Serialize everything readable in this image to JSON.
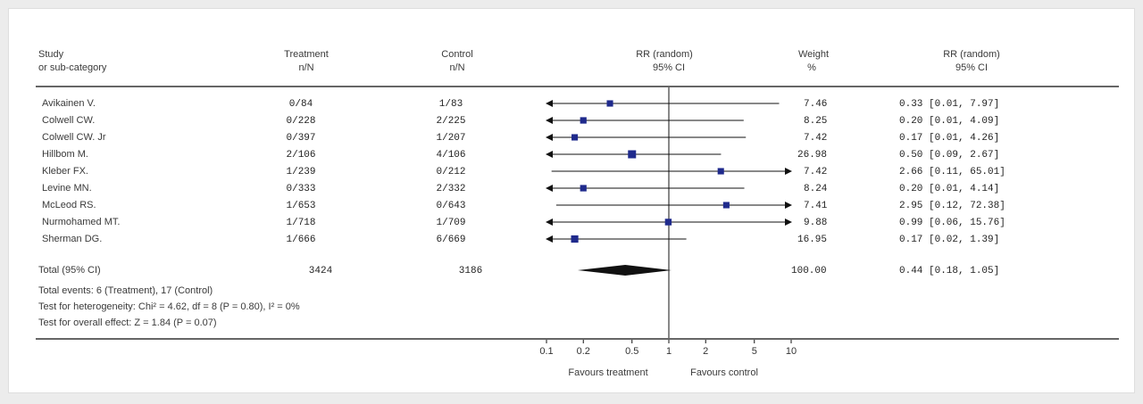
{
  "header": {
    "study": "Study",
    "study2": "or sub-category",
    "treatment": "Treatment",
    "treatment2": "n/N",
    "control": "Control",
    "control2": "n/N",
    "rr": "RR (random)",
    "rr2": "95% CI",
    "weight": "Weight",
    "weight2": "%",
    "rr_col": "RR (random)",
    "rr_col2": "95% CI"
  },
  "rows": [
    {
      "study": "Avikainen V.",
      "treatment": "0/84",
      "control": "1/83",
      "weight": "7.46",
      "ci_text": "0.33 [0.01, 7.97]"
    },
    {
      "study": "Colwell CW.",
      "treatment": "0/228",
      "control": "2/225",
      "weight": "8.25",
      "ci_text": "0.20 [0.01, 4.09]"
    },
    {
      "study": "Colwell CW. Jr",
      "treatment": "0/397",
      "control": "1/207",
      "weight": "7.42",
      "ci_text": "0.17 [0.01, 4.26]"
    },
    {
      "study": "Hillbom M.",
      "treatment": "2/106",
      "control": "4/106",
      "weight": "26.98",
      "ci_text": "0.50 [0.09, 2.67]"
    },
    {
      "study": "Kleber FX.",
      "treatment": "1/239",
      "control": "0/212",
      "weight": "7.42",
      "ci_text": "2.66 [0.11, 65.01]"
    },
    {
      "study": "Levine MN.",
      "treatment": "0/333",
      "control": "2/332",
      "weight": "8.24",
      "ci_text": "0.20 [0.01, 4.14]"
    },
    {
      "study": "McLeod RS.",
      "treatment": "1/653",
      "control": "0/643",
      "weight": "7.41",
      "ci_text": "2.95 [0.12, 72.38]"
    },
    {
      "study": "Nurmohamed MT.",
      "treatment": "1/718",
      "control": "1/709",
      "weight": "9.88",
      "ci_text": "0.99 [0.06, 15.76]"
    },
    {
      "study": "Sherman DG.",
      "treatment": "1/666",
      "control": "6/669",
      "weight": "16.95",
      "ci_text": "0.17 [0.02, 1.39]"
    }
  ],
  "total": {
    "label": "Total (95% CI)",
    "treatment": "3424",
    "control": "3186",
    "weight": "100.00",
    "ci_text": "0.44 [0.18, 1.05]"
  },
  "notes": {
    "events": "Total events: 6 (Treatment), 17 (Control)",
    "heterogeneity": "Test for heterogeneity: Chi² = 4.62, df = 8 (P = 0.80), I² = 0%",
    "overall": "Test for overall effect: Z = 1.84 (P = 0.07)"
  },
  "footer": {
    "favours_treatment": "Favours treatment",
    "favours_control": "Favours control"
  },
  "colors": {
    "marker": "#1f2a8c",
    "line": "#111111",
    "rule": "#666666"
  },
  "chart_data": {
    "type": "forest",
    "scale": "log",
    "xlim": [
      0.1,
      10
    ],
    "ticks": [
      {
        "value": 0.1,
        "label": "0.1"
      },
      {
        "value": 0.2,
        "label": "0.2"
      },
      {
        "value": 0.5,
        "label": "0.5"
      },
      {
        "value": 1,
        "label": "1"
      },
      {
        "value": 2,
        "label": "2"
      },
      {
        "value": 5,
        "label": "5"
      },
      {
        "value": 10,
        "label": "10"
      }
    ],
    "studies": [
      {
        "name": "Avikainen V.",
        "rr": 0.33,
        "lo": 0.01,
        "hi": 7.97,
        "weight": 7.46
      },
      {
        "name": "Colwell CW.",
        "rr": 0.2,
        "lo": 0.01,
        "hi": 4.09,
        "weight": 8.25
      },
      {
        "name": "Colwell CW. Jr",
        "rr": 0.17,
        "lo": 0.01,
        "hi": 4.26,
        "weight": 7.42
      },
      {
        "name": "Hillbom M.",
        "rr": 0.5,
        "lo": 0.09,
        "hi": 2.67,
        "weight": 26.98
      },
      {
        "name": "Kleber FX.",
        "rr": 2.66,
        "lo": 0.11,
        "hi": 65.01,
        "weight": 7.42
      },
      {
        "name": "Levine MN.",
        "rr": 0.2,
        "lo": 0.01,
        "hi": 4.14,
        "weight": 8.24
      },
      {
        "name": "McLeod RS.",
        "rr": 2.95,
        "lo": 0.12,
        "hi": 72.38,
        "weight": 7.41
      },
      {
        "name": "Nurmohamed MT.",
        "rr": 0.99,
        "lo": 0.06,
        "hi": 15.76,
        "weight": 9.88
      },
      {
        "name": "Sherman DG.",
        "rr": 0.17,
        "lo": 0.02,
        "hi": 1.39,
        "weight": 16.95
      }
    ],
    "pooled": {
      "rr": 0.44,
      "lo": 0.18,
      "hi": 1.05
    }
  }
}
